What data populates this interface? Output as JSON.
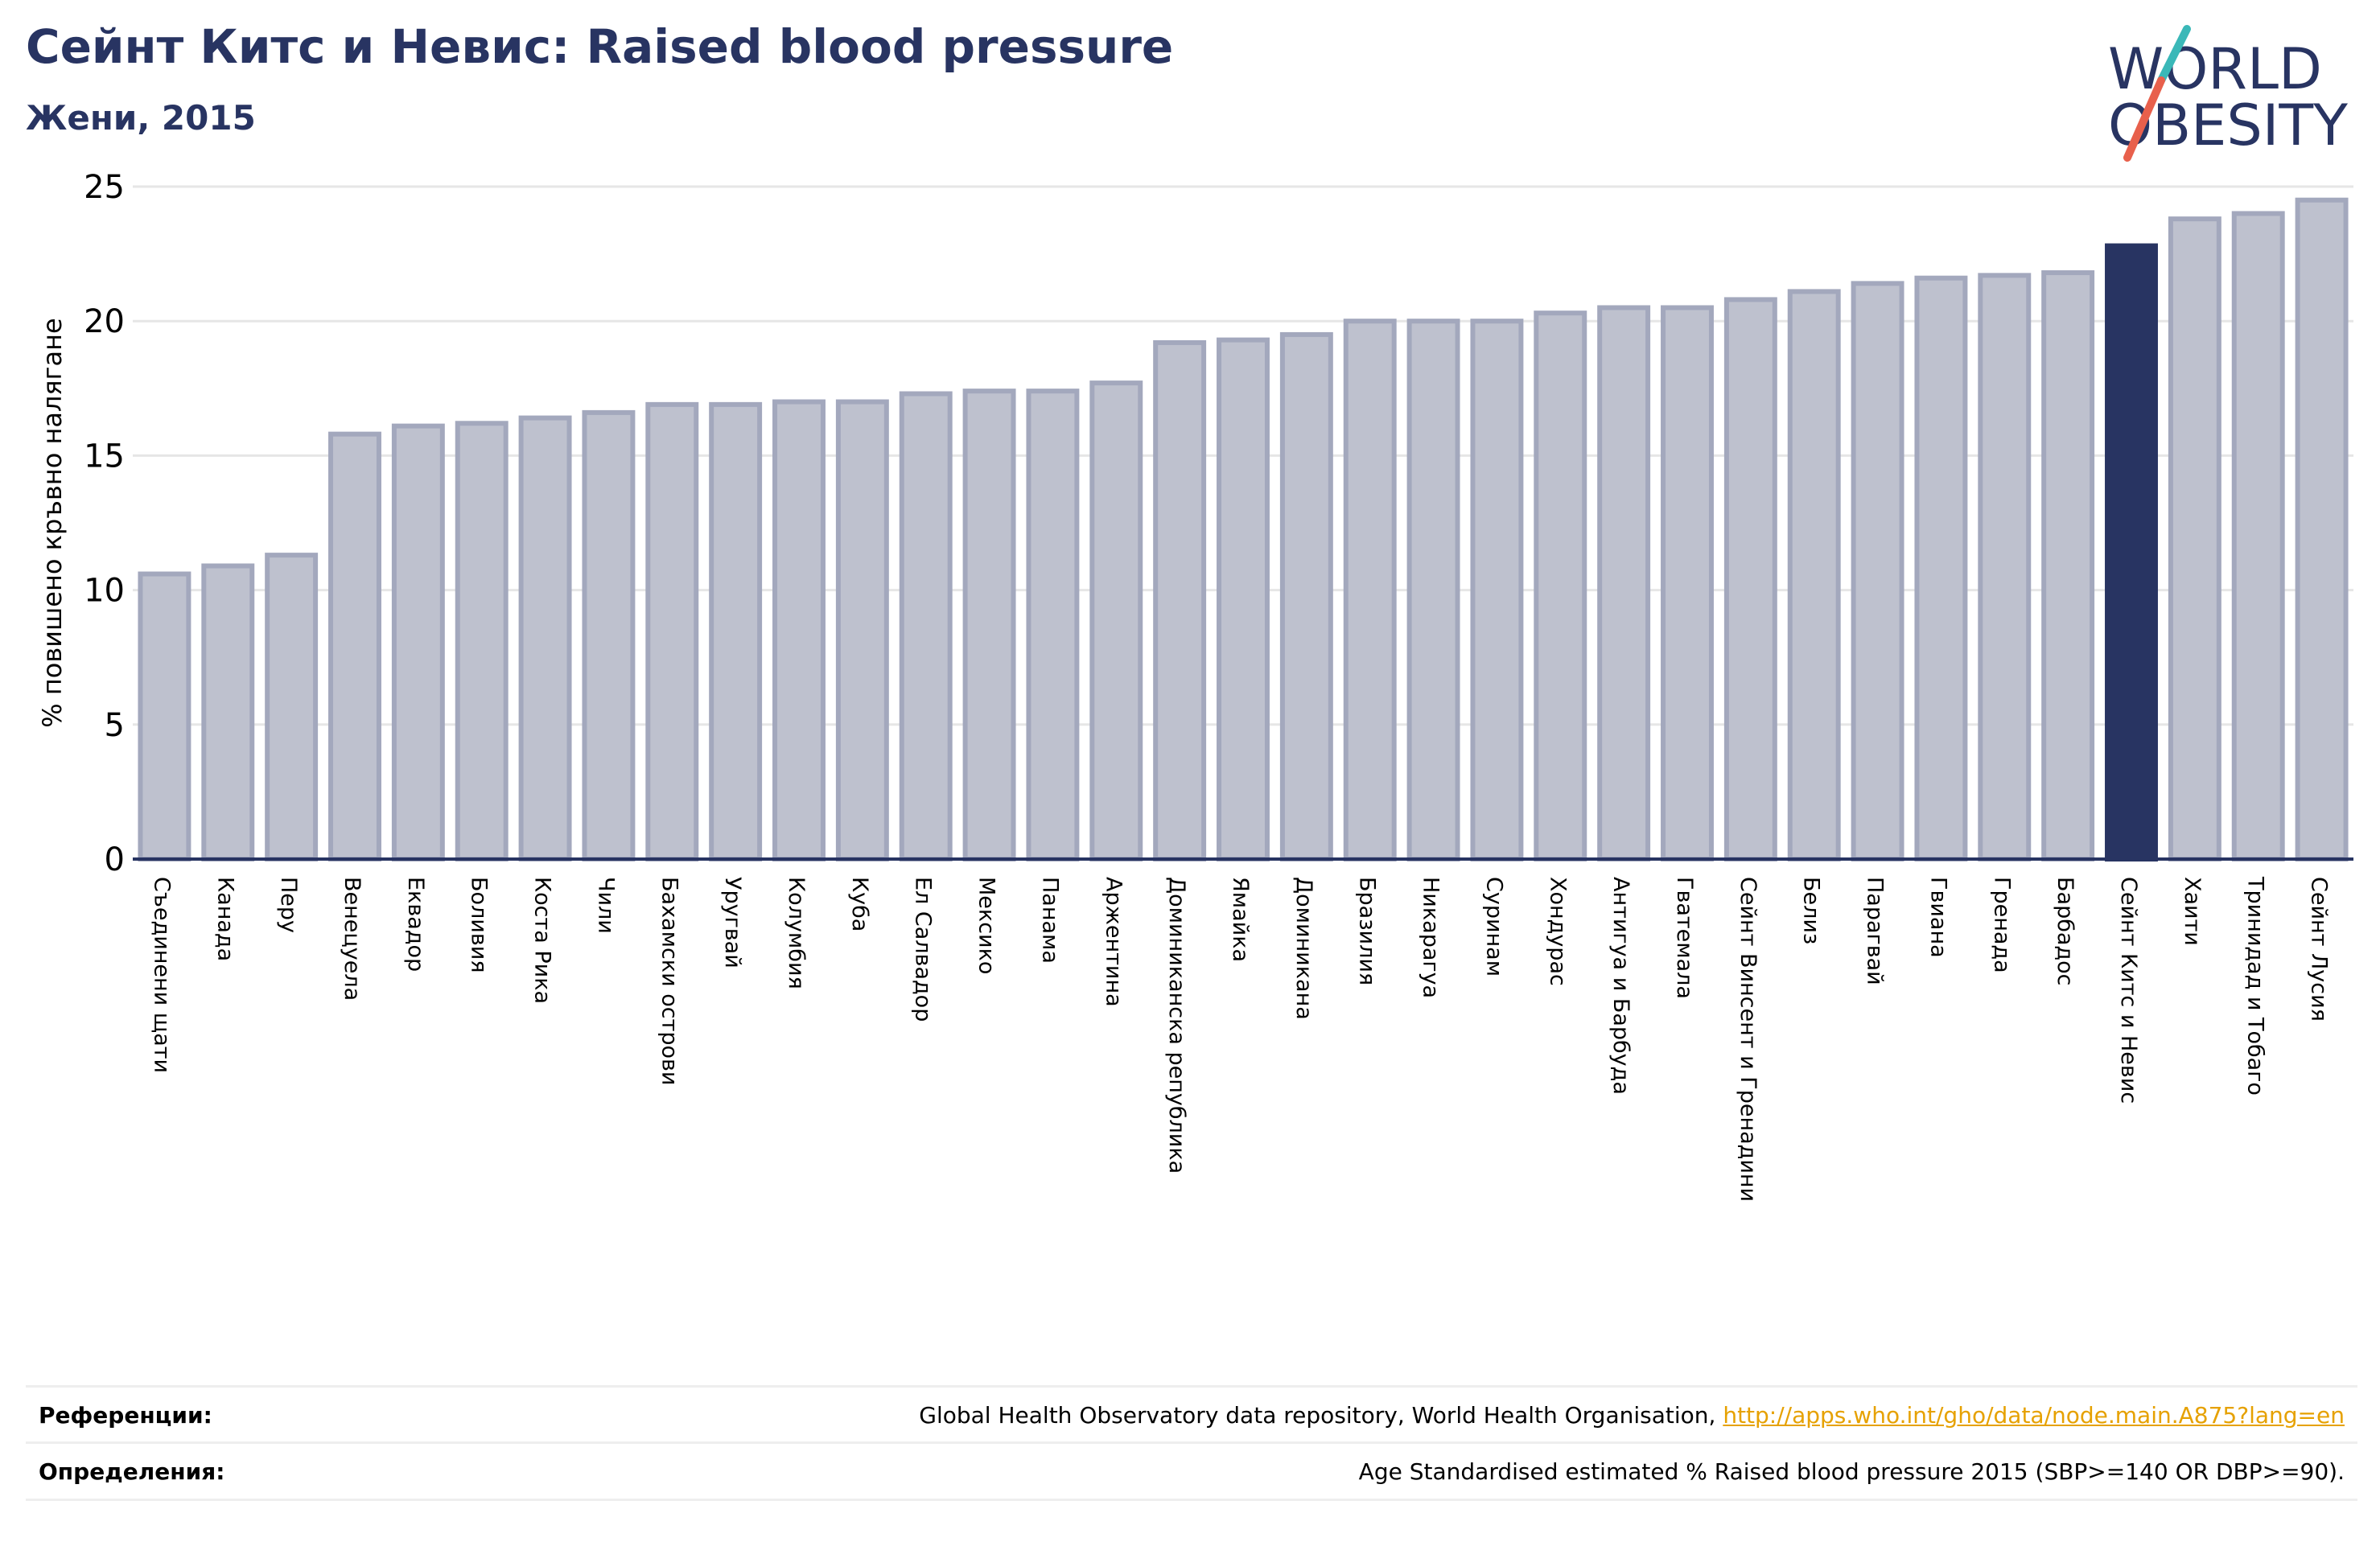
{
  "header": {
    "title": "Сейнт Китс и Невис: Raised blood pressure",
    "subtitle": "Жени, 2015"
  },
  "logo": {
    "line1": "WORLD",
    "line2": "OBESITY",
    "colors": {
      "text": "#283462",
      "slash_teal": "#3ab8b8",
      "slash_red": "#e8604c"
    }
  },
  "chart_data": {
    "type": "bar",
    "title": "Сейнт Китс и Невис: Raised blood pressure",
    "subtitle": "Жени, 2015",
    "xlabel": "",
    "ylabel": "% повишено кръвно налягане",
    "ylim": [
      0,
      25
    ],
    "yticks": [
      0,
      5,
      10,
      15,
      20,
      25
    ],
    "grid": true,
    "highlight": "Сейнт Китс и Невис",
    "colors": {
      "bar": "#bec1ce",
      "bar_edge": "#a3a8bd",
      "highlight": "#283462",
      "axis": "#283462"
    },
    "categories": [
      "Съединени щати",
      "Канада",
      "Перу",
      "Венецуела",
      "Еквадор",
      "Боливия",
      "Коста Рика",
      "Чили",
      "Бахамски острови",
      "Уругвай",
      "Колумбия",
      "Куба",
      "Ел Салвадор",
      "Мексико",
      "Панама",
      "Аржентина",
      "Доминиканска република",
      "Ямайка",
      "Доминикана",
      "Бразилия",
      "Никарагуа",
      "Суринам",
      "Хондурас",
      "Антигуа и Барбуда",
      "Гватемала",
      "Сейнт Винсент и Гренадини",
      "Белиз",
      "Парагвай",
      "Гвиана",
      "Гренада",
      "Барбадос",
      "Сейнт Китс и Невис",
      "Хаити",
      "Тринидад и Тобаго",
      "Сейнт Лусия"
    ],
    "values": [
      10.6,
      10.9,
      11.3,
      15.8,
      16.1,
      16.2,
      16.4,
      16.6,
      16.9,
      16.9,
      17.0,
      17.0,
      17.3,
      17.4,
      17.4,
      17.7,
      19.2,
      19.3,
      19.5,
      20.0,
      20.0,
      20.0,
      20.3,
      20.5,
      20.5,
      20.8,
      21.1,
      21.4,
      21.6,
      21.7,
      21.8,
      22.8,
      23.8,
      24.0,
      24.5
    ]
  },
  "footer": {
    "references_label": "Референции:",
    "references_text": "Global Health Observatory data repository, World Health Organisation, ",
    "references_link": "http://apps.who.int/gho/data/node.main.A875?lang=en",
    "definitions_label": "Определения:",
    "definitions_text": "Age Standardised estimated % Raised blood pressure 2015 (SBP>=140 OR DBP>=90)."
  }
}
